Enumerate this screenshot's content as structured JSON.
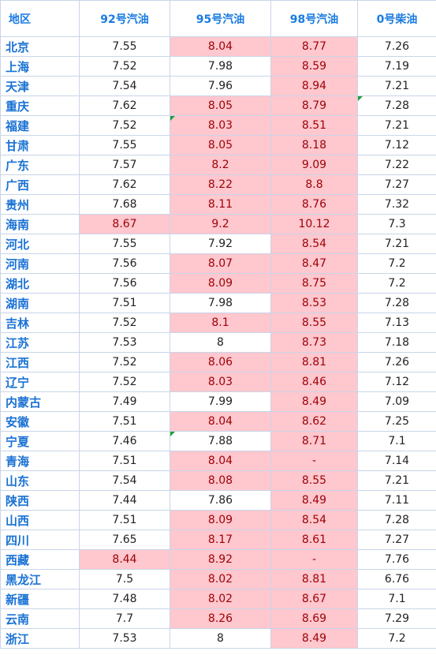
{
  "table": {
    "headers": [
      "地区",
      "92号汽油",
      "95号汽油",
      "98号汽油",
      "0号柴油"
    ],
    "rows": [
      {
        "region": "北京",
        "p92": "7.55",
        "p95": "8.04",
        "p98": "8.77",
        "p0": "7.26",
        "hl92": false,
        "hl95": true,
        "hl98": true,
        "mark95": false,
        "mark0": false
      },
      {
        "region": "上海",
        "p92": "7.52",
        "p95": "7.98",
        "p98": "8.59",
        "p0": "7.19",
        "hl92": false,
        "hl95": false,
        "hl98": true,
        "mark95": false,
        "mark0": false
      },
      {
        "region": "天津",
        "p92": "7.54",
        "p95": "7.96",
        "p98": "8.94",
        "p0": "7.21",
        "hl92": false,
        "hl95": false,
        "hl98": true,
        "mark95": false,
        "mark0": false
      },
      {
        "region": "重庆",
        "p92": "7.62",
        "p95": "8.05",
        "p98": "8.79",
        "p0": "7.28",
        "hl92": false,
        "hl95": true,
        "hl98": true,
        "mark95": false,
        "mark0": true
      },
      {
        "region": "福建",
        "p92": "7.52",
        "p95": "8.03",
        "p98": "8.51",
        "p0": "7.21",
        "hl92": false,
        "hl95": true,
        "hl98": true,
        "mark95": true,
        "mark0": false
      },
      {
        "region": "甘肃",
        "p92": "7.55",
        "p95": "8.05",
        "p98": "8.18",
        "p0": "7.12",
        "hl92": false,
        "hl95": true,
        "hl98": true,
        "mark95": false,
        "mark0": false
      },
      {
        "region": "广东",
        "p92": "7.57",
        "p95": "8.2",
        "p98": "9.09",
        "p0": "7.22",
        "hl92": false,
        "hl95": true,
        "hl98": true,
        "mark95": false,
        "mark0": false
      },
      {
        "region": "广西",
        "p92": "7.62",
        "p95": "8.22",
        "p98": "8.8",
        "p0": "7.27",
        "hl92": false,
        "hl95": true,
        "hl98": true,
        "mark95": false,
        "mark0": false
      },
      {
        "region": "贵州",
        "p92": "7.68",
        "p95": "8.11",
        "p98": "8.76",
        "p0": "7.32",
        "hl92": false,
        "hl95": true,
        "hl98": true,
        "mark95": false,
        "mark0": false
      },
      {
        "region": "海南",
        "p92": "8.67",
        "p95": "9.2",
        "p98": "10.12",
        "p0": "7.3",
        "hl92": true,
        "hl95": true,
        "hl98": true,
        "mark95": false,
        "mark0": false
      },
      {
        "region": "河北",
        "p92": "7.55",
        "p95": "7.92",
        "p98": "8.54",
        "p0": "7.21",
        "hl92": false,
        "hl95": false,
        "hl98": true,
        "mark95": false,
        "mark0": false
      },
      {
        "region": "河南",
        "p92": "7.56",
        "p95": "8.07",
        "p98": "8.47",
        "p0": "7.2",
        "hl92": false,
        "hl95": true,
        "hl98": true,
        "mark95": false,
        "mark0": false
      },
      {
        "region": "湖北",
        "p92": "7.56",
        "p95": "8.09",
        "p98": "8.75",
        "p0": "7.2",
        "hl92": false,
        "hl95": true,
        "hl98": true,
        "mark95": false,
        "mark0": false
      },
      {
        "region": "湖南",
        "p92": "7.51",
        "p95": "7.98",
        "p98": "8.53",
        "p0": "7.28",
        "hl92": false,
        "hl95": false,
        "hl98": true,
        "mark95": false,
        "mark0": false
      },
      {
        "region": "吉林",
        "p92": "7.52",
        "p95": "8.1",
        "p98": "8.55",
        "p0": "7.13",
        "hl92": false,
        "hl95": true,
        "hl98": true,
        "mark95": false,
        "mark0": false
      },
      {
        "region": "江苏",
        "p92": "7.53",
        "p95": "8",
        "p98": "8.73",
        "p0": "7.18",
        "hl92": false,
        "hl95": false,
        "hl98": true,
        "mark95": false,
        "mark0": false
      },
      {
        "region": "江西",
        "p92": "7.52",
        "p95": "8.06",
        "p98": "8.81",
        "p0": "7.26",
        "hl92": false,
        "hl95": true,
        "hl98": true,
        "mark95": false,
        "mark0": false
      },
      {
        "region": "辽宁",
        "p92": "7.52",
        "p95": "8.03",
        "p98": "8.46",
        "p0": "7.12",
        "hl92": false,
        "hl95": true,
        "hl98": true,
        "mark95": false,
        "mark0": false
      },
      {
        "region": "内蒙古",
        "p92": "7.49",
        "p95": "7.99",
        "p98": "8.49",
        "p0": "7.09",
        "hl92": false,
        "hl95": false,
        "hl98": true,
        "mark95": false,
        "mark0": false
      },
      {
        "region": "安徽",
        "p92": "7.51",
        "p95": "8.04",
        "p98": "8.62",
        "p0": "7.25",
        "hl92": false,
        "hl95": true,
        "hl98": true,
        "mark95": false,
        "mark0": false
      },
      {
        "region": "宁夏",
        "p92": "7.46",
        "p95": "7.88",
        "p98": "8.71",
        "p0": "7.1",
        "hl92": false,
        "hl95": false,
        "hl98": true,
        "mark95": true,
        "mark0": false
      },
      {
        "region": "青海",
        "p92": "7.51",
        "p95": "8.04",
        "p98": "-",
        "p0": "7.14",
        "hl92": false,
        "hl95": true,
        "hl98": true,
        "mark95": false,
        "mark0": false
      },
      {
        "region": "山东",
        "p92": "7.54",
        "p95": "8.08",
        "p98": "8.55",
        "p0": "7.21",
        "hl92": false,
        "hl95": true,
        "hl98": true,
        "mark95": false,
        "mark0": false
      },
      {
        "region": "陕西",
        "p92": "7.44",
        "p95": "7.86",
        "p98": "8.49",
        "p0": "7.11",
        "hl92": false,
        "hl95": false,
        "hl98": true,
        "mark95": false,
        "mark0": false
      },
      {
        "region": "山西",
        "p92": "7.51",
        "p95": "8.09",
        "p98": "8.54",
        "p0": "7.28",
        "hl92": false,
        "hl95": true,
        "hl98": true,
        "mark95": false,
        "mark0": false
      },
      {
        "region": "四川",
        "p92": "7.65",
        "p95": "8.17",
        "p98": "8.61",
        "p0": "7.27",
        "hl92": false,
        "hl95": true,
        "hl98": true,
        "mark95": false,
        "mark0": false
      },
      {
        "region": "西藏",
        "p92": "8.44",
        "p95": "8.92",
        "p98": "-",
        "p0": "7.76",
        "hl92": true,
        "hl95": true,
        "hl98": true,
        "mark95": false,
        "mark0": false
      },
      {
        "region": "黑龙江",
        "p92": "7.5",
        "p95": "8.02",
        "p98": "8.81",
        "p0": "6.76",
        "hl92": false,
        "hl95": true,
        "hl98": true,
        "mark95": false,
        "mark0": false
      },
      {
        "region": "新疆",
        "p92": "7.48",
        "p95": "8.02",
        "p98": "8.67",
        "p0": "7.1",
        "hl92": false,
        "hl95": true,
        "hl98": true,
        "mark95": false,
        "mark0": false
      },
      {
        "region": "云南",
        "p92": "7.7",
        "p95": "8.26",
        "p98": "8.69",
        "p0": "7.29",
        "hl92": false,
        "hl95": true,
        "hl98": true,
        "mark95": false,
        "mark0": false
      },
      {
        "region": "浙江",
        "p92": "7.53",
        "p95": "8",
        "p98": "8.49",
        "p0": "7.2",
        "hl92": false,
        "hl95": false,
        "hl98": true,
        "mark95": false,
        "mark0": false
      }
    ]
  },
  "colors": {
    "header_text": "#1a7be0",
    "region_text": "#1a72d4",
    "highlight_fill": "#ffc7ce",
    "highlight_text": "#9c0006",
    "grid": "#c9d5e8",
    "note_mark": "#1f9e3a"
  }
}
